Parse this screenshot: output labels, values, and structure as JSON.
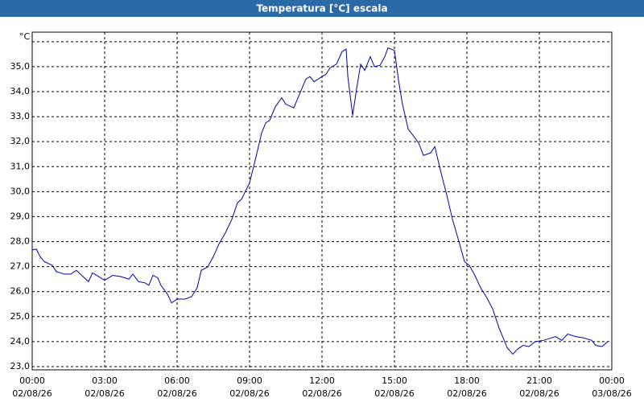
{
  "chart_data": {
    "type": "line",
    "title": "Temperatura [°C] escala",
    "y_label": "°C",
    "x": [
      0,
      0.17,
      0.33,
      0.5,
      0.83,
      1,
      1.33,
      1.6,
      1.83,
      2.33,
      2.5,
      2.67,
      3,
      3.33,
      3.67,
      4,
      4.17,
      4.4,
      4.67,
      4.83,
      5,
      5.2,
      5.33,
      5.6,
      5.77,
      6,
      6.33,
      6.6,
      6.83,
      7,
      7.27,
      7.5,
      7.73,
      8,
      8.27,
      8.5,
      8.67,
      9,
      9.27,
      9.5,
      9.67,
      9.83,
      10.07,
      10.33,
      10.5,
      10.83,
      11.07,
      11.33,
      11.5,
      11.67,
      12,
      12.17,
      12.33,
      12.6,
      12.83,
      13,
      13.07,
      13.27,
      13.43,
      13.6,
      13.77,
      14,
      14.17,
      14.4,
      14.6,
      14.73,
      15,
      15.17,
      15.33,
      15.57,
      15.73,
      16,
      16.2,
      16.5,
      16.67,
      16.93,
      17.17,
      17.4,
      17.67,
      17.9,
      18.1,
      18.33,
      18.57,
      18.83,
      19.07,
      19.33,
      19.5,
      19.67,
      19.9,
      20.1,
      20.33,
      20.57,
      20.83,
      21.17,
      21.67,
      21.93,
      22.17,
      22.5,
      22.83,
      23.17,
      23.33,
      23.6,
      23.83
    ],
    "series": [
      {
        "name": "Temperatura",
        "color": "#0000a8",
        "values": [
          27.67,
          27.7,
          27.4,
          27.2,
          27.05,
          26.8,
          26.7,
          26.7,
          26.85,
          26.4,
          26.75,
          26.65,
          26.45,
          26.65,
          26.6,
          26.5,
          26.7,
          26.4,
          26.35,
          26.25,
          26.65,
          26.55,
          26.25,
          25.9,
          25.55,
          25.7,
          25.7,
          25.8,
          26.15,
          26.85,
          26.99,
          27.4,
          27.9,
          28.35,
          28.9,
          29.55,
          29.7,
          30.35,
          31.4,
          32.35,
          32.75,
          32.85,
          33.4,
          33.75,
          33.5,
          33.35,
          33.9,
          34.5,
          34.6,
          34.4,
          34.6,
          34.7,
          34.95,
          35.1,
          35.6,
          35.7,
          34.6,
          33.05,
          34.1,
          35.1,
          34.85,
          35.4,
          35.0,
          35.05,
          35.4,
          35.75,
          35.65,
          34.45,
          33.5,
          32.5,
          32.3,
          31.95,
          31.45,
          31.55,
          31.8,
          30.75,
          29.85,
          28.9,
          28.0,
          27.2,
          27.05,
          26.65,
          26.15,
          25.75,
          25.3,
          24.55,
          24.15,
          23.75,
          23.5,
          23.7,
          23.85,
          23.8,
          24.0,
          24.05,
          24.2,
          24.05,
          24.3,
          24.2,
          24.15,
          24.05,
          23.85,
          23.8,
          24.0
        ]
      }
    ],
    "xlim": [
      0,
      24
    ],
    "xticks": [
      {
        "value": 0,
        "label": "00:00",
        "date": "02/08/26"
      },
      {
        "value": 3,
        "label": "03:00",
        "date": "02/08/26"
      },
      {
        "value": 6,
        "label": "06:00",
        "date": "02/08/26"
      },
      {
        "value": 9,
        "label": "09:00",
        "date": "02/08/26"
      },
      {
        "value": 12,
        "label": "12:00",
        "date": "02/08/26"
      },
      {
        "value": 15,
        "label": "15:00",
        "date": "02/08/26"
      },
      {
        "value": 18,
        "label": "18:00",
        "date": "02/08/26"
      },
      {
        "value": 21,
        "label": "21:00",
        "date": "02/08/26"
      },
      {
        "value": 24,
        "label": "00:00",
        "date": "03/08/26"
      }
    ],
    "ylim": [
      22.87,
      36.38
    ],
    "yticks": [
      {
        "value": 23,
        "label": "23,0"
      },
      {
        "value": 24,
        "label": "24,0"
      },
      {
        "value": 25,
        "label": "25,0"
      },
      {
        "value": 26,
        "label": "26,0"
      },
      {
        "value": 27,
        "label": "27,0"
      },
      {
        "value": 28,
        "label": "28,0"
      },
      {
        "value": 29,
        "label": "29,0"
      },
      {
        "value": 30,
        "label": "30,0"
      },
      {
        "value": 31,
        "label": "31,0"
      },
      {
        "value": 32,
        "label": "32,0"
      },
      {
        "value": 33,
        "label": "33,0"
      },
      {
        "value": 34,
        "label": "34,0"
      },
      {
        "value": 35,
        "label": "35,0"
      },
      {
        "value": 36,
        "label": null
      }
    ],
    "grid": true
  }
}
